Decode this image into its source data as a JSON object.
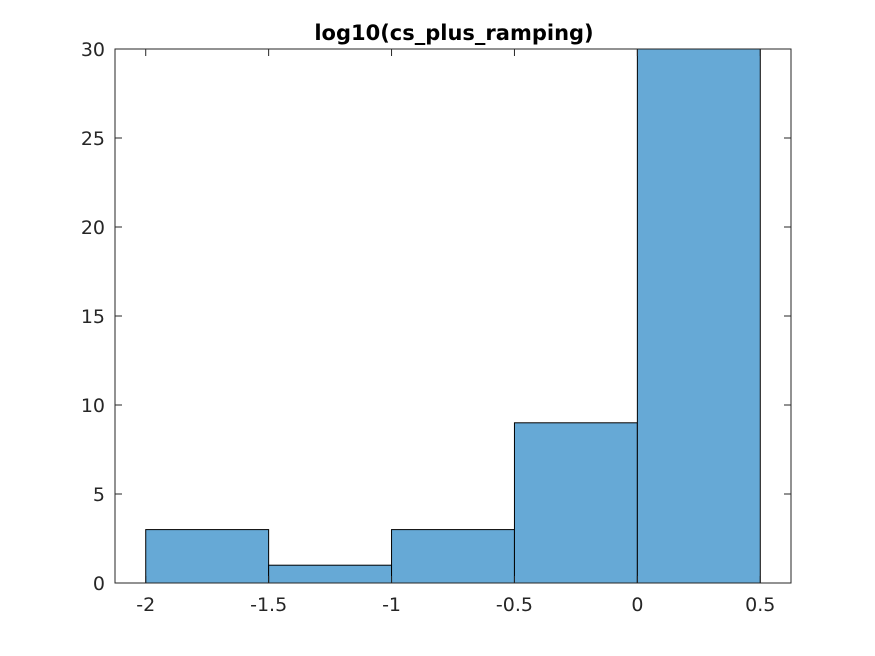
{
  "chart_data": {
    "type": "bar",
    "title": "log10(cs_plus_ramping)",
    "xlabel": "",
    "ylabel": "",
    "bins": [
      {
        "x0": -2.0,
        "x1": -1.5,
        "count": 3
      },
      {
        "x0": -1.5,
        "x1": -1.0,
        "count": 1
      },
      {
        "x0": -1.0,
        "x1": -0.5,
        "count": 3
      },
      {
        "x0": -0.5,
        "x1": 0.0,
        "count": 9
      },
      {
        "x0": 0.0,
        "x1": 0.5,
        "count": 30
      }
    ],
    "xlim": [
      -2.125,
      0.625
    ],
    "ylim": [
      0,
      30
    ],
    "xticks": [
      -2,
      -1.5,
      -1,
      -0.5,
      0,
      0.5
    ],
    "xtick_labels": [
      "-2",
      "-1.5",
      "-1",
      "-0.5",
      "0",
      "0.5"
    ],
    "yticks": [
      0,
      5,
      10,
      15,
      20,
      25,
      30
    ],
    "ytick_labels": [
      "0",
      "5",
      "10",
      "15",
      "20",
      "25",
      "30"
    ],
    "bar_color": "#66a9d6",
    "grid": false,
    "legend": "none"
  }
}
